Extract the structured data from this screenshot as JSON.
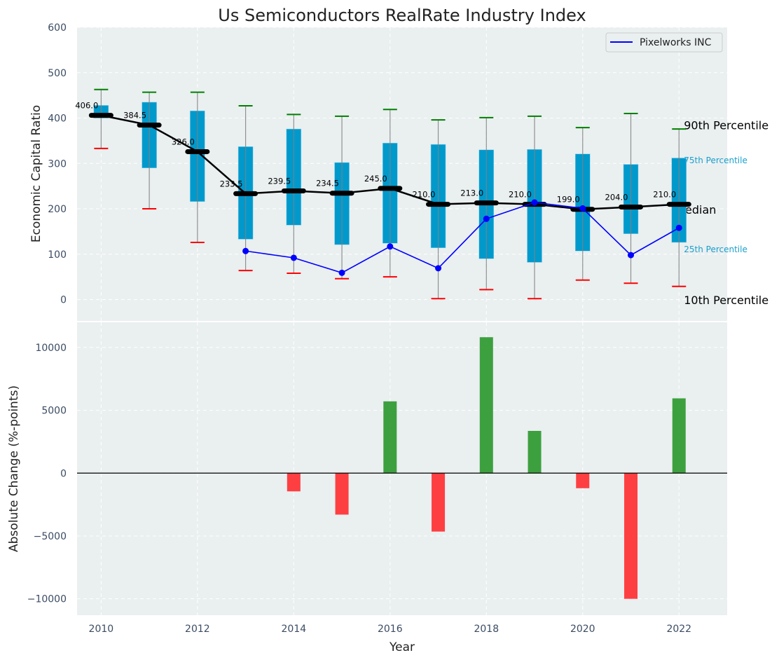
{
  "chart_data": [
    {
      "type": "box",
      "title": "Us Semiconductors RealRate Industry Index",
      "xlabel": "",
      "ylabel": "Economic Capital Ratio",
      "ylim": [
        -47,
        600
      ],
      "xlim": [
        2009.5,
        2023
      ],
      "yticks": [
        0,
        100,
        200,
        300,
        400,
        500,
        600
      ],
      "grid": true,
      "legend": {
        "position": "top-right",
        "entries": [
          {
            "label": "Pixelworks INC",
            "color": "#0000ff"
          }
        ]
      },
      "years": [
        2010,
        2011,
        2012,
        2013,
        2014,
        2015,
        2016,
        2017,
        2018,
        2019,
        2020,
        2021,
        2022
      ],
      "p90": [
        463,
        457,
        457,
        427,
        408,
        404,
        419,
        396,
        401,
        404,
        379,
        410,
        376
      ],
      "p75": [
        428,
        435,
        416,
        337,
        376,
        302,
        345,
        342,
        330,
        331,
        321,
        298,
        312
      ],
      "median": [
        406.0,
        384.5,
        326.0,
        233.5,
        239.5,
        234.5,
        245.0,
        210.0,
        213.0,
        210.0,
        199.0,
        204.0,
        210.0
      ],
      "median_labels": [
        "406.0",
        "384.5",
        "326.0",
        "233.5",
        "239.5",
        "234.5",
        "245.0",
        "210.0",
        "213.0",
        "210.0",
        "199.0",
        "204.0",
        "210.0"
      ],
      "p25": [
        400,
        290,
        216,
        133,
        164,
        121,
        124,
        114,
        90,
        82,
        107,
        145,
        126
      ],
      "p10": [
        333,
        200,
        126,
        64,
        58,
        46,
        50,
        2,
        22,
        2,
        43,
        36,
        29
      ],
      "series": [
        {
          "name": "Pixelworks INC",
          "years": [
            2013,
            2014,
            2015,
            2016,
            2017,
            2018,
            2019,
            2020,
            2021,
            2022
          ],
          "values": [
            107,
            92,
            59,
            117,
            69,
            178,
            214,
            201,
            98,
            158
          ]
        }
      ],
      "annotations": {
        "p90": "90th Percentile",
        "p75": "75th Percentile",
        "median": "Median",
        "p25": "25th Percentile",
        "p10": "10th Percentile"
      },
      "colors": {
        "box": "#0099cc",
        "whisker": "#808080",
        "cap_high": "#008000",
        "cap_low": "#ff0000",
        "median": "#000000",
        "series": "#0000ff",
        "background": "#eaeff0",
        "quartile_label": "#1a9fcc"
      }
    },
    {
      "type": "bar",
      "title": "",
      "xlabel": "Year",
      "ylabel": "Absolute Change (%-points)",
      "ylim": [
        -11300,
        12000
      ],
      "xlim": [
        2009.5,
        2023
      ],
      "yticks": [
        -10000,
        -5000,
        0,
        5000,
        10000
      ],
      "ytick_labels": [
        "−10000",
        "−5000",
        "0",
        "5000",
        "10000"
      ],
      "xticks": [
        2010,
        2012,
        2014,
        2016,
        2018,
        2020,
        2022
      ],
      "xtick_labels": [
        "2010",
        "2012",
        "2014",
        "2016",
        "2018",
        "2020",
        "2022"
      ],
      "grid": true,
      "categories": [
        2014,
        2015,
        2016,
        2017,
        2018,
        2019,
        2020,
        2021,
        2022
      ],
      "values": [
        -1450,
        -3300,
        5710,
        -4650,
        10815,
        3360,
        -1200,
        -10000,
        5950
      ],
      "colors": {
        "positive": "#2e9930",
        "negative": "#ff3033"
      }
    }
  ]
}
